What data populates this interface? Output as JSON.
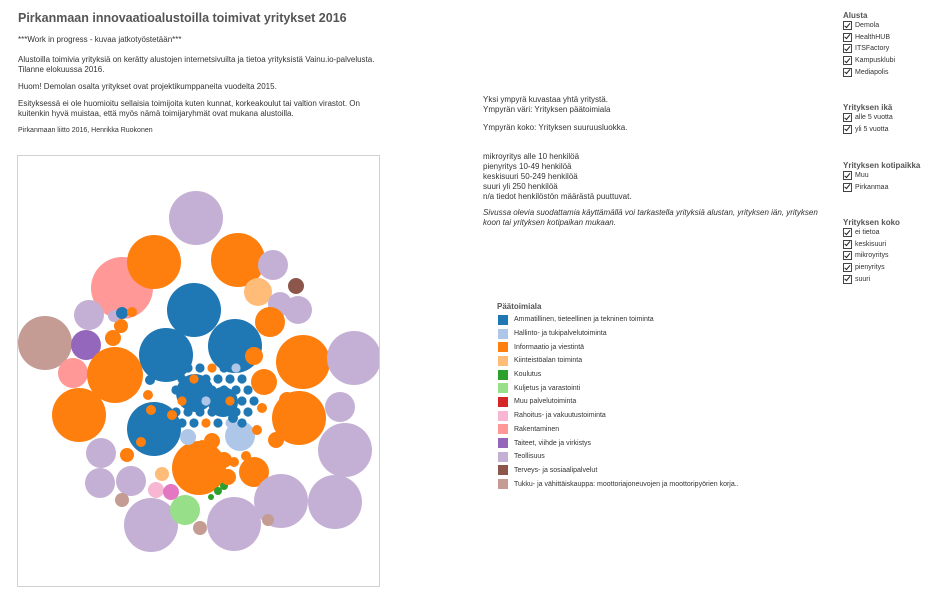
{
  "header": {
    "title": "Pirkanmaan innovaatioalustoilla toimivat yritykset 2016",
    "subtitle": "***Work in progress - kuvaa jatkotyöstetään***",
    "intro1": "Alustoilla toimivia yrityksiä on kerätty alustojen internetsivuilta ja tietoa yrityksistä Vainu.io-palvelusta. Tilanne elokuussa 2016.",
    "intro2": "Huom! Demolan osalta yritykset ovat projektikumppaneita vuodelta 2015.",
    "intro3": "Esityksessä ei ole huomioitu sellaisia toimijoita kuten kunnat, korkeakoulut tai valtion virastot. On kuitenkin hyvä muistaa, että myös nämä toimijaryhmät ovat mukana alustoilla.",
    "credit": "Pirkanmaan liitto 2016, Henrikka Ruokonen"
  },
  "info": {
    "line1": "Yksi ympyrä kuvastaa yhtä yritystä.",
    "line2": "Ympyrän väri: Yrityksen päätoimiala",
    "line3": "Ympyrän koko: Yrityksen suuruusluokka.",
    "sizes": [
      "mikroyritys alle 10 henkilöä",
      "pienyritys 10-49 henkilöä",
      "keskisuuri 50-249 henkilöä",
      "suuri yli 250 henkilöä",
      "n/a tiedot henkilöstön määrästä puuttuvat."
    ],
    "note": "Sivussa olevia suodattamia käyttämällä voi tarkastella yrityksiä alustan, yrityksen iän, yrityksen koon tai yrityksen kotipaikan mukaan."
  },
  "legend": {
    "title": "Päätoimiala",
    "items": [
      {
        "label": "Ammatillinen, tieteellinen ja tekninen toiminta",
        "color": "#1f77b4"
      },
      {
        "label": "Hallinto- ja tukipalvelutoiminta",
        "color": "#aec7e8"
      },
      {
        "label": "Informaatio ja viestintä",
        "color": "#ff7f0e"
      },
      {
        "label": "Kiinteistöalan toiminta",
        "color": "#ffbb78"
      },
      {
        "label": "Koulutus",
        "color": "#2ca02c"
      },
      {
        "label": "Kuljetus ja varastointi",
        "color": "#98df8a"
      },
      {
        "label": "Muu palvelutoiminta",
        "color": "#d62728"
      },
      {
        "label": "Rahoitus- ja vakuutustoiminta",
        "color": "#f7b6d2"
      },
      {
        "label": "Rakentaminen",
        "color": "#ff9896"
      },
      {
        "label": "Taiteet, viihde ja virkistys",
        "color": "#9467bd"
      },
      {
        "label": "Teollisuus",
        "color": "#c5b0d5"
      },
      {
        "label": "Terveys- ja sosiaalipalvelut",
        "color": "#8c564b"
      },
      {
        "label": "Tukku- ja vähittäiskauppa: moottoriajoneuvojen ja moottoripyörien korja..",
        "color": "#c49c94"
      }
    ]
  },
  "filters": [
    {
      "title": "Alusta",
      "options": [
        "Demola",
        "HealthHUB",
        "ITSFactory",
        "Kampusklubi",
        "Mediapolis"
      ]
    },
    {
      "title": "Yrityksen ikä",
      "options": [
        "alle 5 vuotta",
        "yli 5 vuotta"
      ]
    },
    {
      "title": "Yrityksen kotipaikka",
      "options": [
        "Muu",
        "Pirkanmaa"
      ]
    },
    {
      "title": "Yrityksen koko",
      "options": [
        "ei tietoa",
        "keskisuuri",
        "mikroyritys",
        "pienyritys",
        "suuri"
      ]
    }
  ],
  "colors": {
    "blue": "#1f77b4",
    "lightblue": "#aec7e8",
    "orange": "#ff7f0e",
    "peach": "#ffbb78",
    "green": "#2ca02c",
    "lightgreen": "#98df8a",
    "pink": "#e377c2",
    "lightpink": "#f7b6d2",
    "salmon": "#ff9896",
    "purple": "#9467bd",
    "lavender": "#c5b0d5",
    "brown": "#8c564b",
    "mauve": "#c49c94"
  }
}
